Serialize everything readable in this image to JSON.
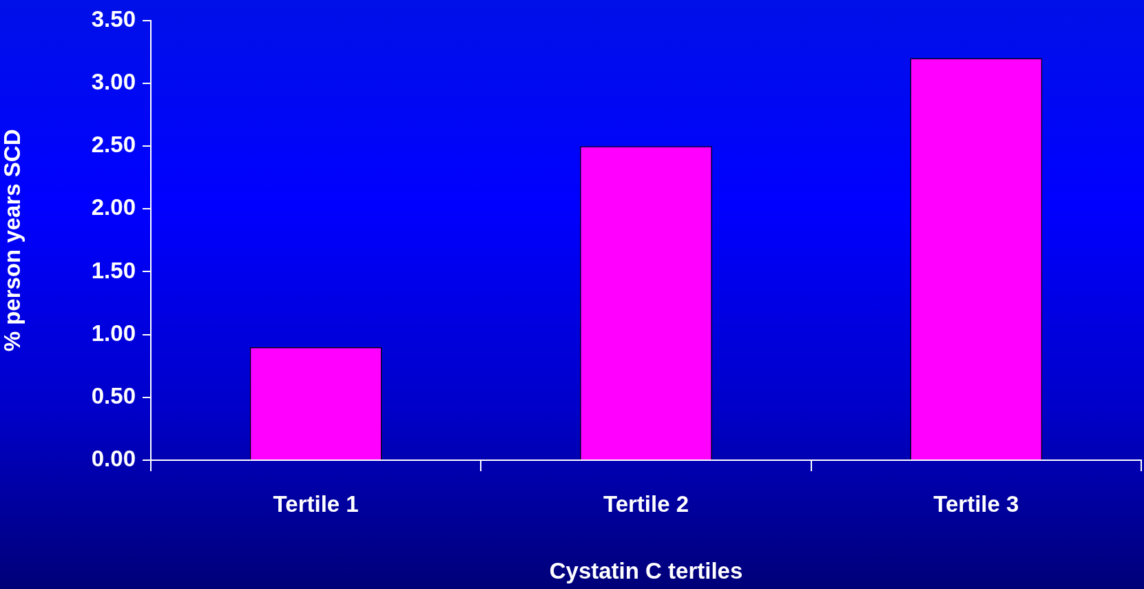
{
  "chart_data": {
    "type": "bar",
    "xlabel": "Cystatin C tertiles",
    "ylabel": "% person years SCD",
    "categories": [
      "Tertile 1",
      "Tertile 2",
      "Tertile 3"
    ],
    "values": [
      0.9,
      2.5,
      3.2
    ],
    "color": "#ff00ff",
    "ylim": [
      0,
      3.5
    ],
    "yticks": [
      {
        "value": 0,
        "label": "0.00"
      },
      {
        "value": 0.5,
        "label": "0.50"
      },
      {
        "value": 1,
        "label": "1.00"
      },
      {
        "value": 1.5,
        "label": "1.50"
      },
      {
        "value": 2,
        "label": "2.00"
      },
      {
        "value": 2.5,
        "label": "2.50"
      },
      {
        "value": 3,
        "label": "3.00"
      },
      {
        "value": 3.5,
        "label": "3.50"
      }
    ]
  }
}
